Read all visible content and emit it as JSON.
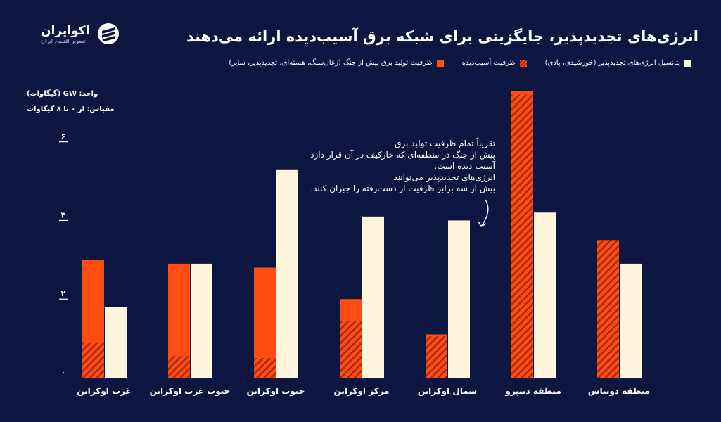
{
  "header": {
    "title": "انرژی‌های تجدیدپذیر، جایگزینی برای شبکه برق آسیب‌دیده ارائه می‌دهند"
  },
  "logo": {
    "name": "اکوایران",
    "tagline": "تصویر اقتصاد ایران"
  },
  "legend": {
    "items": [
      {
        "label": "ظرفیت تولید برق پیش از جنگ (زغال‌سنگ، هسته‌ای، تجدیدپذیر، سایر)",
        "color": "#ff4d12",
        "style": "solid"
      },
      {
        "label": "ظرفیت آسیب‌دیده",
        "color": "#ff4d12",
        "style": "hatched"
      },
      {
        "label": "پتانسیل انرژی‌های تجدیدپذیر (خورشیدی، بادی)",
        "color": "#fdf6dc",
        "style": "solid"
      }
    ]
  },
  "axis_notes": {
    "unit": "واحد: GW (گیگاوات)",
    "scale": "مقیاس: از ۰ تا ۸ گیگاوات"
  },
  "annotation": {
    "lines": [
      "تقریباً تمام ظرفیت تولید برق",
      "پیش از جنگ در منطقه‌ای که خارکیف در آن قرار دارد",
      "آسیب دیده است.",
      "انرژی‌های تجدیدپذیر می‌توانند",
      "بیش از سه برابر ظرفیت از دست‌رفته را جبران کنند."
    ]
  },
  "colors": {
    "background": "#0d1640",
    "orange": "#ff4d12",
    "hatch_stripe": "#a52a10",
    "cream": "#fdf6dc"
  },
  "chart_data": {
    "type": "bar",
    "categories": [
      "غرب اوکراین",
      "جنوب غرب اوکراین",
      "جنوب اوکراین",
      "مرکز اوکراین",
      "شمال اوکراین",
      "منطقه دنیپرو",
      "منطقه دونباس"
    ],
    "ylim": [
      0,
      7.3
    ],
    "yticks": [
      {
        "value": 0,
        "label": "۰"
      },
      {
        "value": 2,
        "label": "۲"
      },
      {
        "value": 4,
        "label": "۴"
      },
      {
        "value": 6,
        "label": "۶"
      }
    ],
    "series": [
      {
        "name": "ظرفیت تولید برق پیش از جنگ (زغال‌سنگ، هسته‌ای، تجدیدپذیر، سایر)",
        "values": [
          3.0,
          2.9,
          2.8,
          2.0,
          1.1,
          7.3,
          3.5
        ]
      },
      {
        "name": "ظرفیت آسیب‌دیده",
        "values": [
          0.9,
          0.55,
          0.5,
          1.45,
          1.05,
          7.2,
          3.5
        ]
      },
      {
        "name": "پتانسیل انرژی‌های تجدیدپذیر (خورشیدی، بادی)",
        "values": [
          1.8,
          2.9,
          5.3,
          4.1,
          4.0,
          4.2,
          2.9
        ]
      }
    ],
    "grid": false,
    "legend_position": "top-right"
  }
}
